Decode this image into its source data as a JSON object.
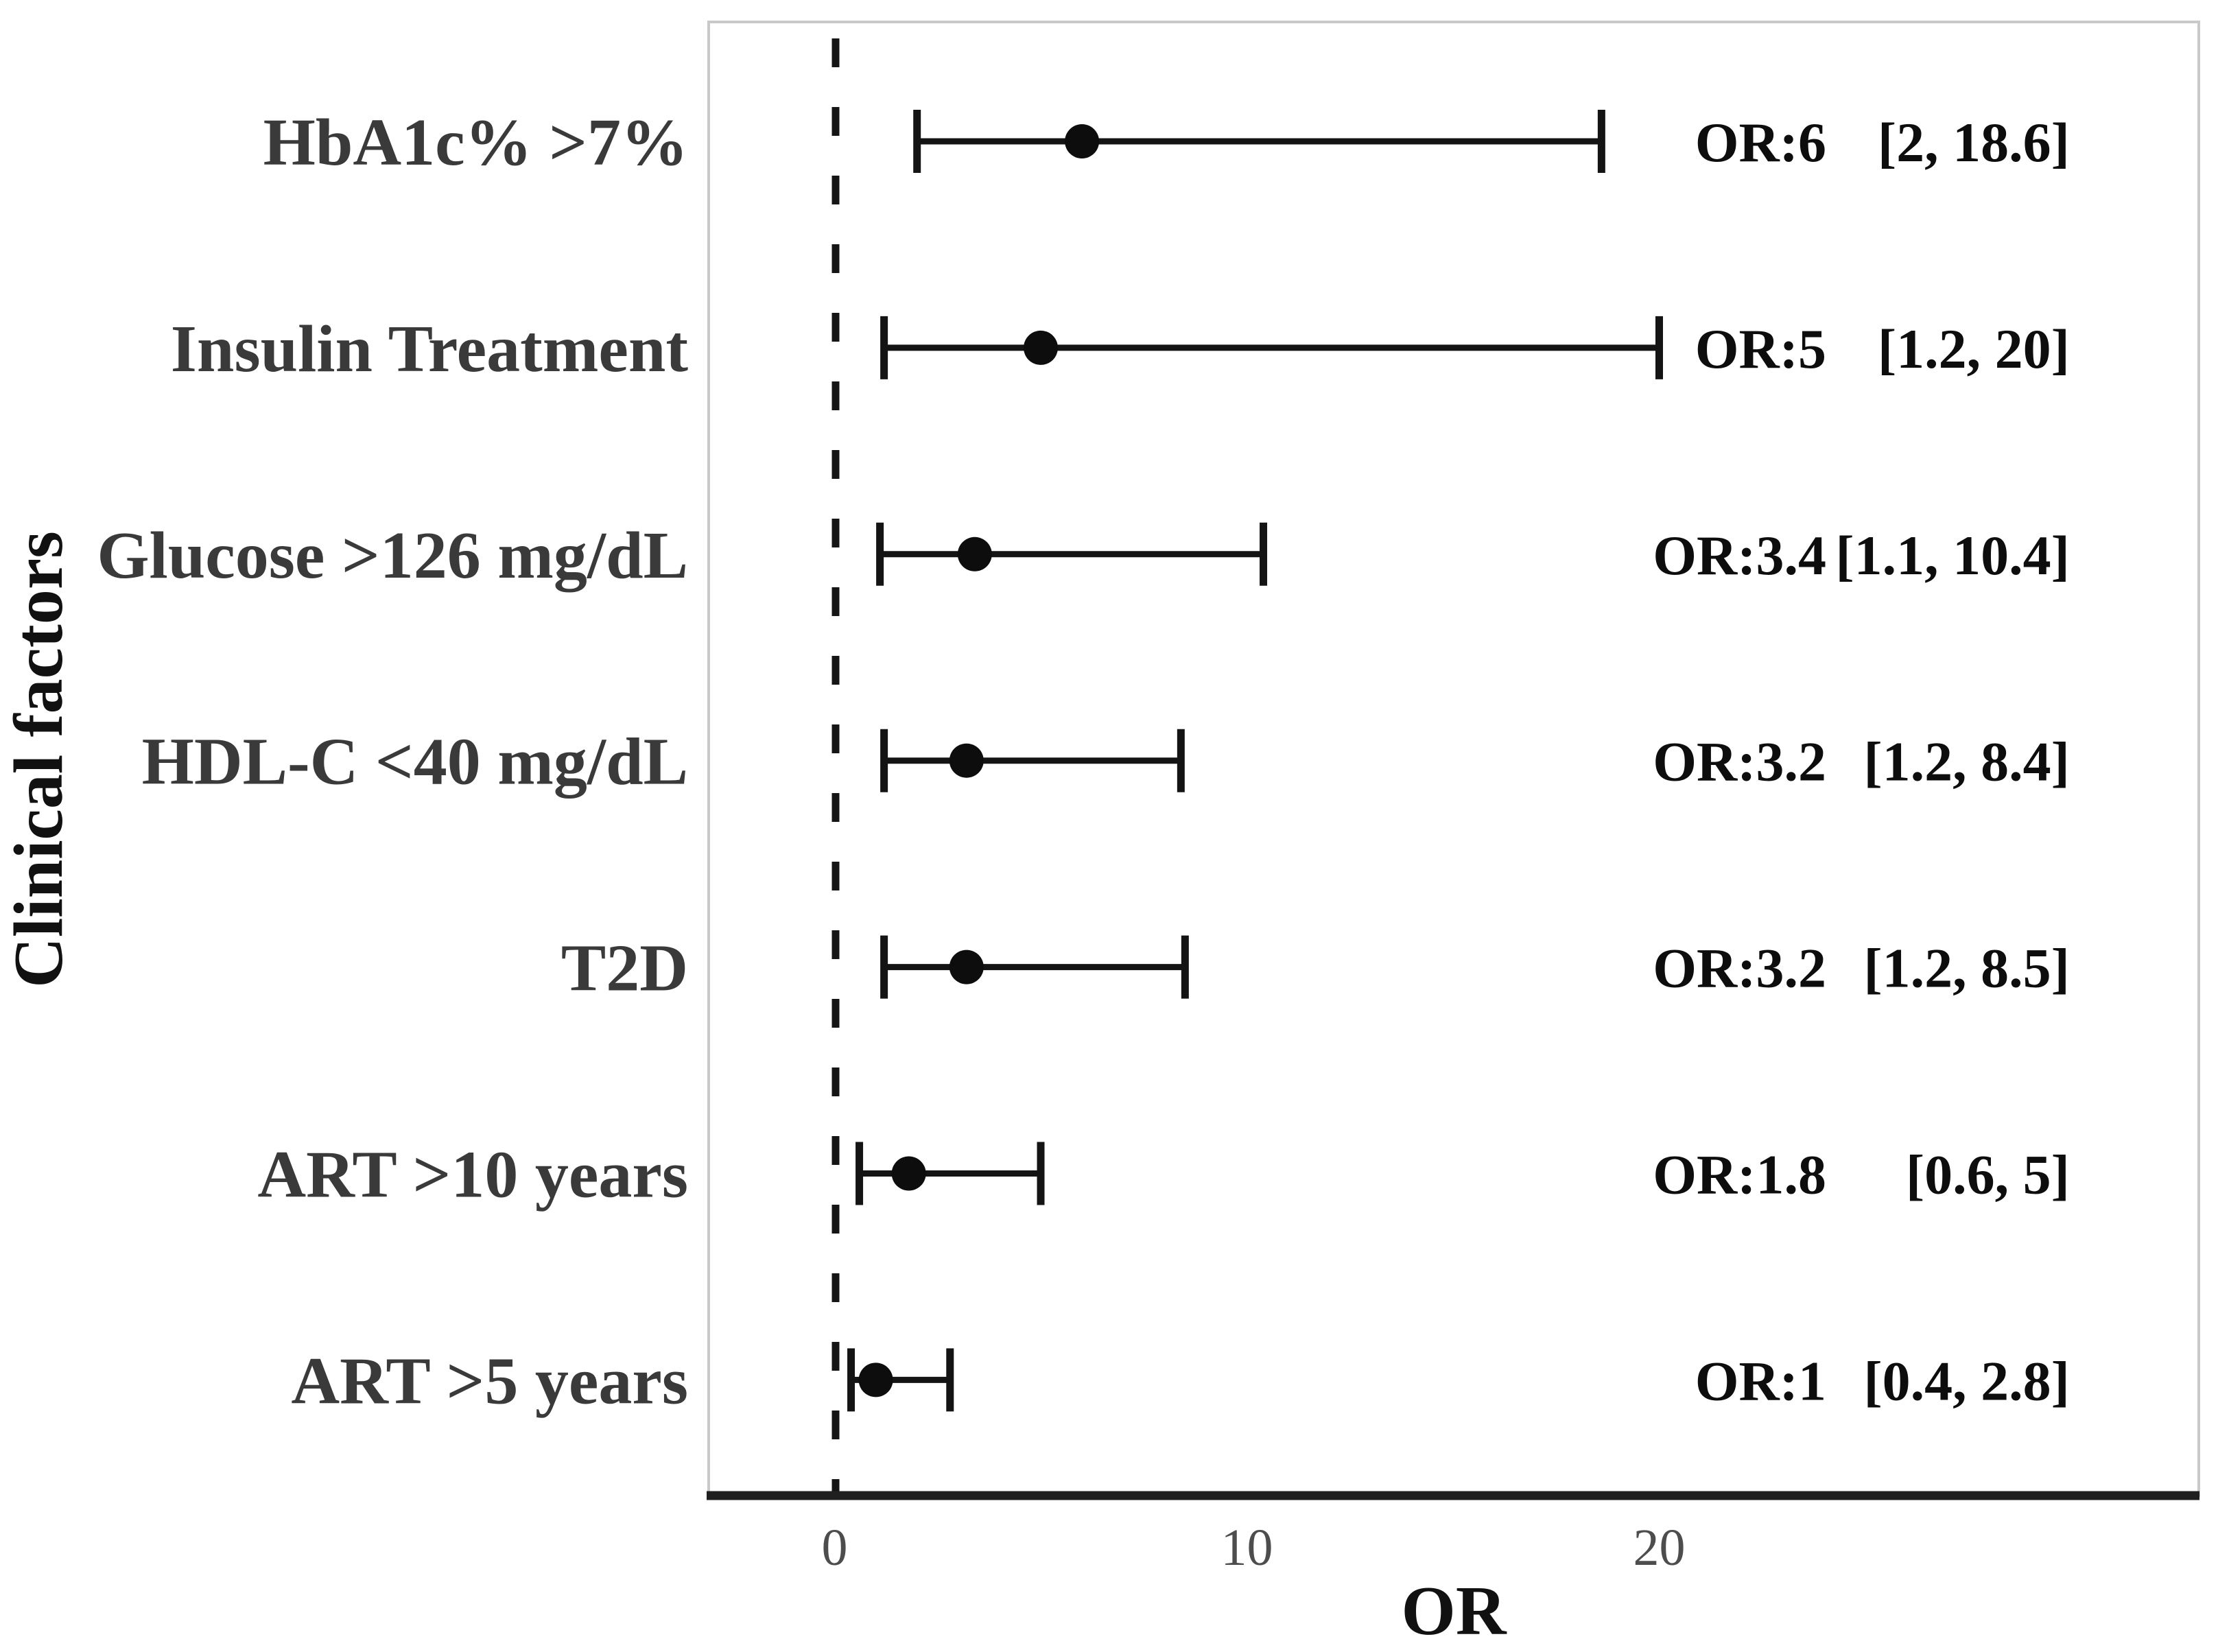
{
  "figure": {
    "x_axis_title": "OR",
    "y_axis_title": "Clinical factors"
  },
  "colors": {
    "background": "#ffffff",
    "panel_border": "#c9c9c9",
    "axis_line": "#1f1f1f",
    "reference_line": "#151515",
    "ci_line": "#141414",
    "marker": "#0d0d0d",
    "category_label": "#3a3a3a",
    "tick_label": "#4d4d4d",
    "annotation": "#0d0d0d",
    "axis_title": "#111111"
  },
  "chart_data": {
    "type": "scatter",
    "subtype": "forest-plot",
    "title": "",
    "xlabel": "OR",
    "ylabel": "Clinical factors",
    "xlim": [
      -3,
      33
    ],
    "x_ticks": [
      0,
      10,
      20
    ],
    "reference_line_x": 0,
    "grid": false,
    "legend": false,
    "rows": [
      {
        "label": "HbA1c% >7%",
        "or": 6,
        "ci_low": 2,
        "ci_high": 18.6,
        "annotation_or": "OR:6",
        "annotation_ci": "[2, 18.6]"
      },
      {
        "label": "Insulin Treatment",
        "or": 5,
        "ci_low": 1.2,
        "ci_high": 20,
        "annotation_or": "OR:5",
        "annotation_ci": "[1.2, 20]"
      },
      {
        "label": "Glucose >126 mg/dL",
        "or": 3.4,
        "ci_low": 1.1,
        "ci_high": 10.4,
        "annotation_or": "OR:3.4",
        "annotation_ci": "[1.1, 10.4]"
      },
      {
        "label": "HDL-C <40 mg/dL",
        "or": 3.2,
        "ci_low": 1.2,
        "ci_high": 8.4,
        "annotation_or": "OR:3.2",
        "annotation_ci": "[1.2, 8.4]"
      },
      {
        "label": "T2D",
        "or": 3.2,
        "ci_low": 1.2,
        "ci_high": 8.5,
        "annotation_or": "OR:3.2",
        "annotation_ci": "[1.2, 8.5]"
      },
      {
        "label": "ART >10 years",
        "or": 1.8,
        "ci_low": 0.6,
        "ci_high": 5,
        "annotation_or": "OR:1.8",
        "annotation_ci": "[0.6, 5]"
      },
      {
        "label": "ART >5 years",
        "or": 1,
        "ci_low": 0.4,
        "ci_high": 2.8,
        "annotation_or": "OR:1",
        "annotation_ci": "[0.4, 2.8]"
      }
    ]
  }
}
